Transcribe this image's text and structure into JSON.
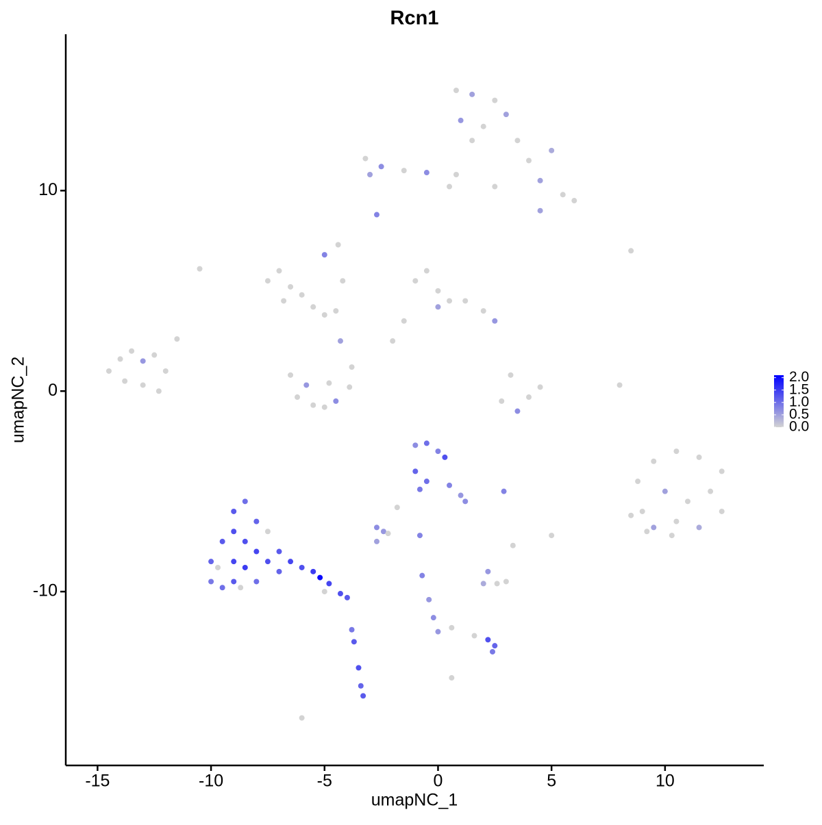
{
  "chart_data": {
    "type": "scatter",
    "title": "Rcn1",
    "x_label": "umapNC_1",
    "y_label": "umapNC_2",
    "xlim": [
      -16.4,
      14.35
    ],
    "ylim": [
      -18.67,
      17.8
    ],
    "xticks": [
      -15,
      -10,
      -5,
      0,
      5,
      10
    ],
    "yticks": [
      -10,
      0,
      10
    ],
    "colorscale": [
      "#d3d3d3",
      "#0000ff"
    ],
    "clim": [
      0,
      2.1
    ],
    "colorbar_ticks": [
      {
        "value": 0,
        "label": "0.0"
      },
      0.5,
      {
        "value": 1,
        "label": "1.0"
      },
      1.5,
      {
        "value": 2,
        "label": "2.0"
      }
    ],
    "x": [
      -14.5,
      -14,
      -13.5,
      -13,
      -12.5,
      -12,
      -13.8,
      -13,
      -12.3,
      -11.5,
      -7.5,
      -7,
      -6.5,
      -6.8,
      -6,
      -5.5,
      -5,
      -4.5,
      -5,
      -4.2,
      -6.5,
      -6.2,
      -5.5,
      -5,
      -4.5,
      -3.9,
      -3.8,
      -4.8,
      -5.8,
      -4.3,
      -1.5,
      -1,
      -0.5,
      0,
      0,
      0.5,
      1.2,
      2,
      2.5,
      -2,
      0.8,
      1.5,
      2.5,
      1,
      2,
      3,
      1.5,
      3.5,
      4,
      5,
      4.5,
      5.5,
      6,
      4.5,
      -3.2,
      -2.5,
      -3,
      -1.5,
      -0.5,
      0.8,
      0.5,
      2.5,
      -2.7,
      -4.4,
      8.5,
      -10.5,
      8.8,
      9.5,
      10.5,
      11.5,
      12.5,
      9,
      10,
      11,
      12,
      12.5,
      8.5,
      9.5,
      10.5,
      11.5,
      9.2,
      10.3,
      2.8,
      3.5,
      4,
      3.2,
      4.5,
      8,
      -10,
      -10,
      -9.5,
      -9.5,
      -9,
      -9,
      -9,
      -9,
      -8.5,
      -8.5,
      -8.5,
      -8,
      -8,
      -8,
      -7.5,
      -7.5,
      -7,
      -7,
      -9.7,
      -8.7,
      -6.5,
      -6,
      -5.5,
      -5.2,
      -4.8,
      -4.3,
      -4,
      -5,
      -3.8,
      -3.7,
      -3.5,
      -3.4,
      -3.3,
      -6,
      -1,
      -0.5,
      0,
      0.3,
      -1,
      -0.5,
      -0.8,
      0.5,
      1,
      1.2,
      -2.7,
      -2.4,
      -2.2,
      -2.7,
      -1.8,
      -0.8,
      2.9,
      5,
      3.3,
      2,
      2.6,
      3,
      2.2,
      -0.7,
      -0.4,
      -0.2,
      0,
      0.6,
      1.6,
      2.2,
      2.5,
      2.4,
      0.6
    ],
    "y": [
      1.0,
      1.6,
      2.0,
      1.5,
      1.8,
      1.0,
      0.5,
      0.3,
      0.0,
      2.6,
      5.5,
      6,
      5.2,
      4.5,
      4.8,
      4.2,
      3.8,
      4.0,
      6.8,
      5.5,
      0.8,
      -0.3,
      -0.7,
      -0.8,
      -0.5,
      0.2,
      1.2,
      0.4,
      0.3,
      2.5,
      3.5,
      5.5,
      6.0,
      5.0,
      4.2,
      4.5,
      4.5,
      4.0,
      3.5,
      2.5,
      15,
      14.8,
      14.5,
      13.5,
      13.2,
      13.8,
      12.5,
      12.5,
      11.5,
      12,
      10.5,
      9.8,
      9.5,
      9.0,
      11.6,
      11.2,
      10.8,
      11.0,
      10.9,
      10.8,
      10.2,
      10.2,
      8.8,
      7.3,
      7.0,
      6.1,
      -4.5,
      -3.5,
      -3,
      -3.3,
      -4,
      -6,
      -5,
      -5.5,
      -5,
      -6,
      -6.2,
      -6.8,
      -6.5,
      -6.8,
      -7,
      -7.2,
      -0.5,
      -1.0,
      -0.3,
      0.8,
      0.2,
      0.3,
      -8.5,
      -9.5,
      -7.5,
      -9.8,
      -6,
      -7,
      -8.5,
      -9.5,
      -5.5,
      -7.5,
      -8.8,
      -6.5,
      -8,
      -9.5,
      -7,
      -8.5,
      -8,
      -9,
      -8.8,
      -9.8,
      -8.5,
      -8.8,
      -9.0,
      -9.3,
      -9.6,
      -10.1,
      -10.3,
      -10.0,
      -11.9,
      -12.5,
      -13.8,
      -14.7,
      -15.2,
      -16.3,
      -2.7,
      -2.6,
      -3,
      -3.3,
      -4,
      -4.5,
      -4.9,
      -4.7,
      -5.2,
      -5.5,
      -6.8,
      -7,
      -7.1,
      -7.5,
      -5.8,
      -7.2,
      -5.0,
      -7.2,
      -7.7,
      -9.6,
      -9.6,
      -9.5,
      -9.0,
      -9.2,
      -10.4,
      -11.3,
      -12,
      -11.8,
      -12.2,
      -12.4,
      -12.7,
      -13.0,
      -14.3
    ],
    "values": [
      0,
      0,
      0,
      0.6,
      0,
      0,
      0,
      0,
      0,
      0,
      0,
      0,
      0,
      0,
      0,
      0,
      0,
      0,
      0.8,
      0,
      0,
      0,
      0,
      0,
      0.7,
      0,
      0,
      0,
      0.6,
      0.5,
      0,
      0,
      0,
      0,
      0.5,
      0,
      0,
      0,
      0.6,
      0,
      0,
      0.5,
      0,
      0.6,
      0,
      0.5,
      0,
      0,
      0,
      0.4,
      0.5,
      0,
      0,
      0.5,
      0,
      0.7,
      0.5,
      0,
      0.7,
      0,
      0,
      0,
      0.8,
      0,
      0,
      0,
      0,
      0,
      0,
      0,
      0,
      0,
      0.5,
      0,
      0,
      0,
      0,
      0.5,
      0,
      0.4,
      0,
      0,
      0,
      0.7,
      0,
      0,
      0,
      0,
      1.1,
      0.9,
      1.2,
      1.0,
      1.2,
      1.3,
      1.4,
      1.2,
      1.0,
      1.3,
      1.5,
      1.1,
      1.4,
      1.0,
      0,
      1.3,
      1.2,
      1.1,
      0,
      0,
      1.4,
      1.3,
      1.5,
      2.0,
      1.4,
      1.3,
      1.2,
      0,
      0.9,
      1.2,
      1.3,
      1.1,
      1.2,
      0,
      0.7,
      1.0,
      0.8,
      1.3,
      1.1,
      1.0,
      0.9,
      0.8,
      0.6,
      0.7,
      0.7,
      0.6,
      0,
      0.5,
      0,
      0.8,
      0.8,
      0,
      0,
      0.4,
      0,
      0,
      0.6,
      0.8,
      0.6,
      0.7,
      0.6,
      0,
      0,
      1.3,
      1.1,
      0.9,
      0
    ]
  }
}
